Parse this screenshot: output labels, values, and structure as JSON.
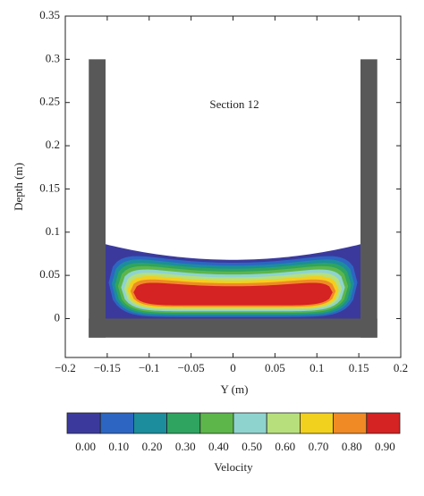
{
  "chart_data": {
    "type": "contour",
    "annotation": "Section 12",
    "xlabel": "Y (m)",
    "ylabel": "Depth (m)",
    "xlim": [
      -0.2,
      0.2
    ],
    "ylim": [
      -0.045,
      0.35
    ],
    "xticks": [
      {
        "value": -0.2,
        "label": "−0.2"
      },
      {
        "value": -0.15,
        "label": "−0.15"
      },
      {
        "value": -0.1,
        "label": "−0.1"
      },
      {
        "value": -0.05,
        "label": "−0.05"
      },
      0,
      0.05,
      0.1,
      0.15,
      0.2
    ],
    "yticks": [
      0,
      0.05,
      0.1,
      0.15,
      0.2,
      0.25,
      0.3,
      0.35
    ],
    "colorbar": {
      "label": "Velocity",
      "levels": [
        0,
        0.1,
        0.2,
        0.3,
        0.4,
        0.5,
        0.6,
        0.7,
        0.8,
        0.9
      ],
      "value_labels": [
        "0.00",
        "0.10",
        "0.20",
        "0.30",
        "0.40",
        "0.50",
        "0.60",
        "0.70",
        "0.80",
        "0.90"
      ],
      "colors": [
        "#3b3a9c",
        "#2c66c2",
        "#1c8d9c",
        "#2ea460",
        "#5db64a",
        "#8fd3cf",
        "#b7e07c",
        "#f2d01e",
        "#ef8a25",
        "#d52222"
      ]
    }
  }
}
